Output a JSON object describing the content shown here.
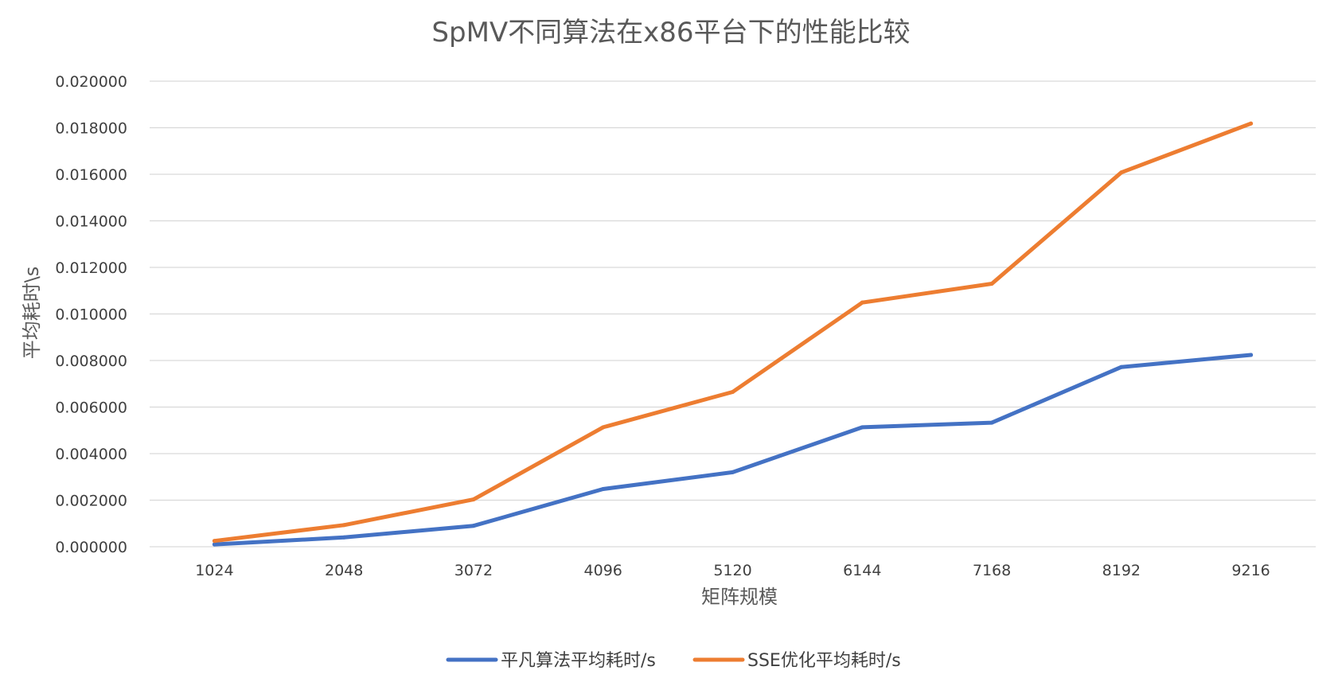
{
  "chart_data": {
    "type": "line",
    "title": "SpMV不同算法在x86平台下的性能比较",
    "xlabel": "矩阵规模",
    "ylabel": "平均耗时\\s",
    "categories": [
      "1024",
      "2048",
      "3072",
      "4096",
      "5120",
      "6144",
      "7168",
      "8192",
      "9216"
    ],
    "ylim": [
      0,
      0.02
    ],
    "y_ticks": [
      "0.000000",
      "0.002000",
      "0.004000",
      "0.006000",
      "0.008000",
      "0.010000",
      "0.012000",
      "0.014000",
      "0.016000",
      "0.018000",
      "0.020000"
    ],
    "grid": true,
    "legend_position": "bottom",
    "series": [
      {
        "name": "平凡算法平均耗时/s",
        "color": "#4472C4",
        "values": [
          0.0001,
          0.0004,
          0.0009,
          0.00248,
          0.0032,
          0.00513,
          0.00533,
          0.00772,
          0.00824
        ]
      },
      {
        "name": "SSE优化平均耗时/s",
        "color": "#ED7D31",
        "values": [
          0.00025,
          0.00093,
          0.00203,
          0.00513,
          0.00665,
          0.01049,
          0.0113,
          0.01608,
          0.01818
        ]
      }
    ]
  }
}
